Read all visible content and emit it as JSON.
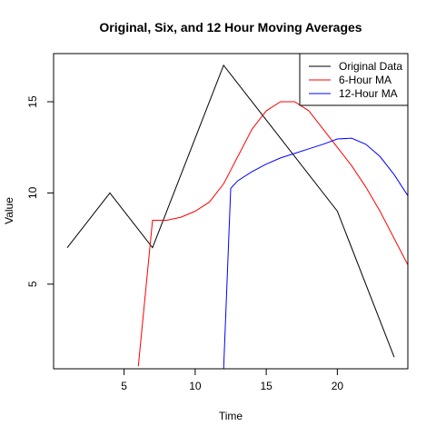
{
  "chart_data": {
    "type": "line",
    "title": "Original, Six, and 12 Hour Moving Averages",
    "xlabel": "Time",
    "ylabel": "Value",
    "xlim": [
      0.04,
      24.96
    ],
    "ylim": [
      0.36,
      17.64
    ],
    "x_ticks": [
      5,
      10,
      15,
      20
    ],
    "y_ticks": [
      5,
      10,
      15
    ],
    "grid": false,
    "legend_position": "top-right",
    "series": [
      {
        "name": "Original Data",
        "color": "#000000",
        "x": [
          1,
          4,
          7,
          12,
          20,
          24
        ],
        "values": [
          7,
          10,
          7,
          17,
          9,
          1
        ]
      },
      {
        "name": "6-Hour MA",
        "color": "#ff0000",
        "x": [
          6,
          7,
          8,
          9,
          10,
          11,
          12,
          13,
          14,
          15,
          16,
          17,
          18,
          19,
          20,
          21,
          22,
          23,
          24,
          25
        ],
        "values": [
          0.5,
          8.5,
          8.5,
          8.67,
          9.0,
          9.5,
          10.5,
          12.0,
          13.5,
          14.5,
          15.0,
          15.0,
          14.5,
          13.5,
          12.5,
          11.5,
          10.33,
          9.0,
          7.5,
          6.0
        ]
      },
      {
        "name": "12-Hour MA",
        "color": "#0000ff",
        "x": [
          12,
          12.5,
          13,
          14,
          15,
          16,
          17,
          18,
          19,
          20,
          21,
          22,
          23,
          24,
          25
        ],
        "values": [
          0.3,
          10.25,
          10.67,
          11.17,
          11.58,
          11.92,
          12.17,
          12.42,
          12.67,
          12.96,
          13.0,
          12.67,
          12.0,
          11.0,
          9.8
        ]
      }
    ]
  }
}
